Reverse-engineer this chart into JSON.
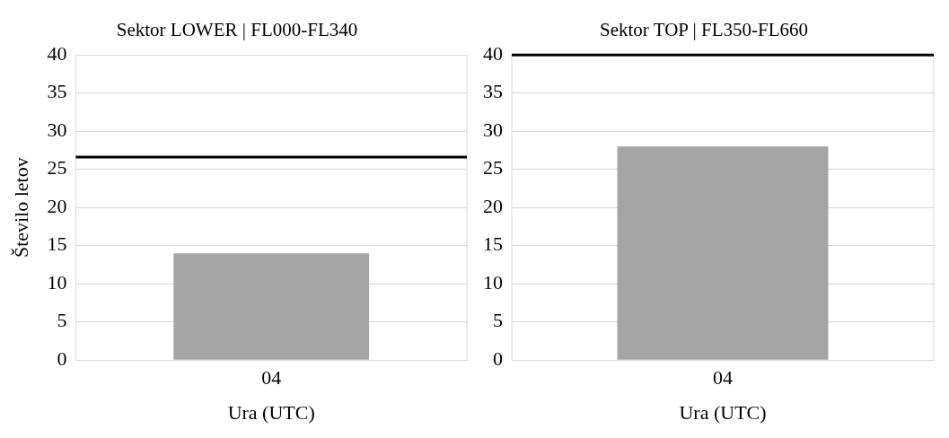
{
  "chart_data": [
    {
      "type": "bar",
      "title": "Sektor LOWER | FL000-FL340",
      "xlabel": "Ura (UTC)",
      "ylabel": "Število letov",
      "categories": [
        "04"
      ],
      "values": [
        14
      ],
      "color": "#a5a5a5",
      "ylim": [
        0,
        40
      ],
      "yticks": [
        0,
        5,
        10,
        15,
        20,
        25,
        30,
        35,
        40
      ],
      "grid": "y",
      "ref_lines": [
        {
          "axis": "y",
          "value": 26.6,
          "color": "#000000"
        }
      ]
    },
    {
      "type": "bar",
      "title": "Sektor TOP | FL350-FL660",
      "xlabel": "Ura (UTC)",
      "categories": [
        "04"
      ],
      "values": [
        28
      ],
      "color": "#a5a5a5",
      "ylim": [
        0,
        40
      ],
      "yticks": [
        0,
        5,
        10,
        15,
        20,
        25,
        30,
        35,
        40
      ],
      "grid": "y",
      "ref_lines": [
        {
          "axis": "y",
          "value": 40,
          "color": "#000000"
        }
      ]
    }
  ]
}
